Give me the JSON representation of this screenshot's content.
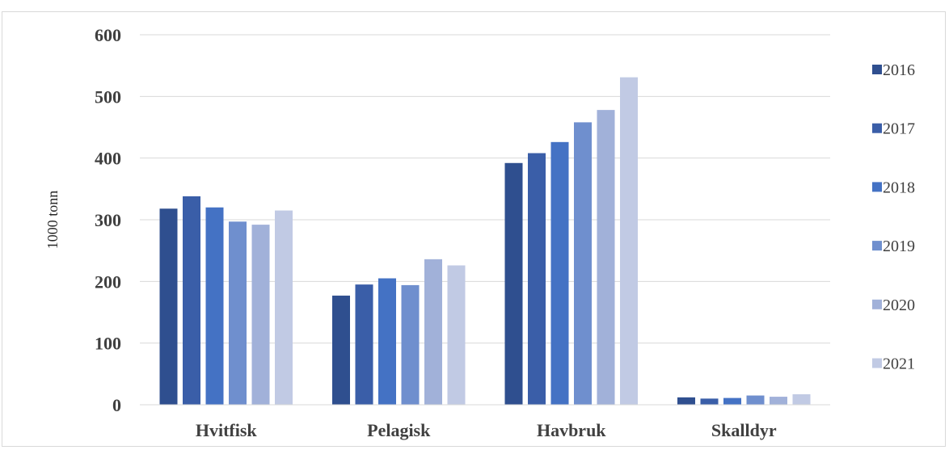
{
  "chart_data": {
    "type": "bar",
    "title": "",
    "xlabel": "",
    "ylabel": "1000 tonn",
    "ylim": [
      0,
      600
    ],
    "yticks": [
      0,
      100,
      200,
      300,
      400,
      500,
      600
    ],
    "grid": true,
    "legend_position": "right",
    "categories": [
      "Hvitfisk",
      "Pelagisk",
      "Havbruk",
      "Skalldyr"
    ],
    "series": [
      {
        "name": "2016",
        "color": "#2f4f8f",
        "values": [
          318,
          177,
          392,
          12
        ]
      },
      {
        "name": "2017",
        "color": "#3a5ea8",
        "values": [
          338,
          195,
          408,
          10
        ]
      },
      {
        "name": "2018",
        "color": "#4472c4",
        "values": [
          320,
          205,
          426,
          11
        ]
      },
      {
        "name": "2019",
        "color": "#6f8fce",
        "values": [
          297,
          194,
          458,
          15
        ]
      },
      {
        "name": "2020",
        "color": "#a1b1d9",
        "values": [
          292,
          236,
          478,
          13
        ]
      },
      {
        "name": "2021",
        "color": "#c1cae4",
        "values": [
          315,
          226,
          531,
          17
        ]
      }
    ]
  }
}
